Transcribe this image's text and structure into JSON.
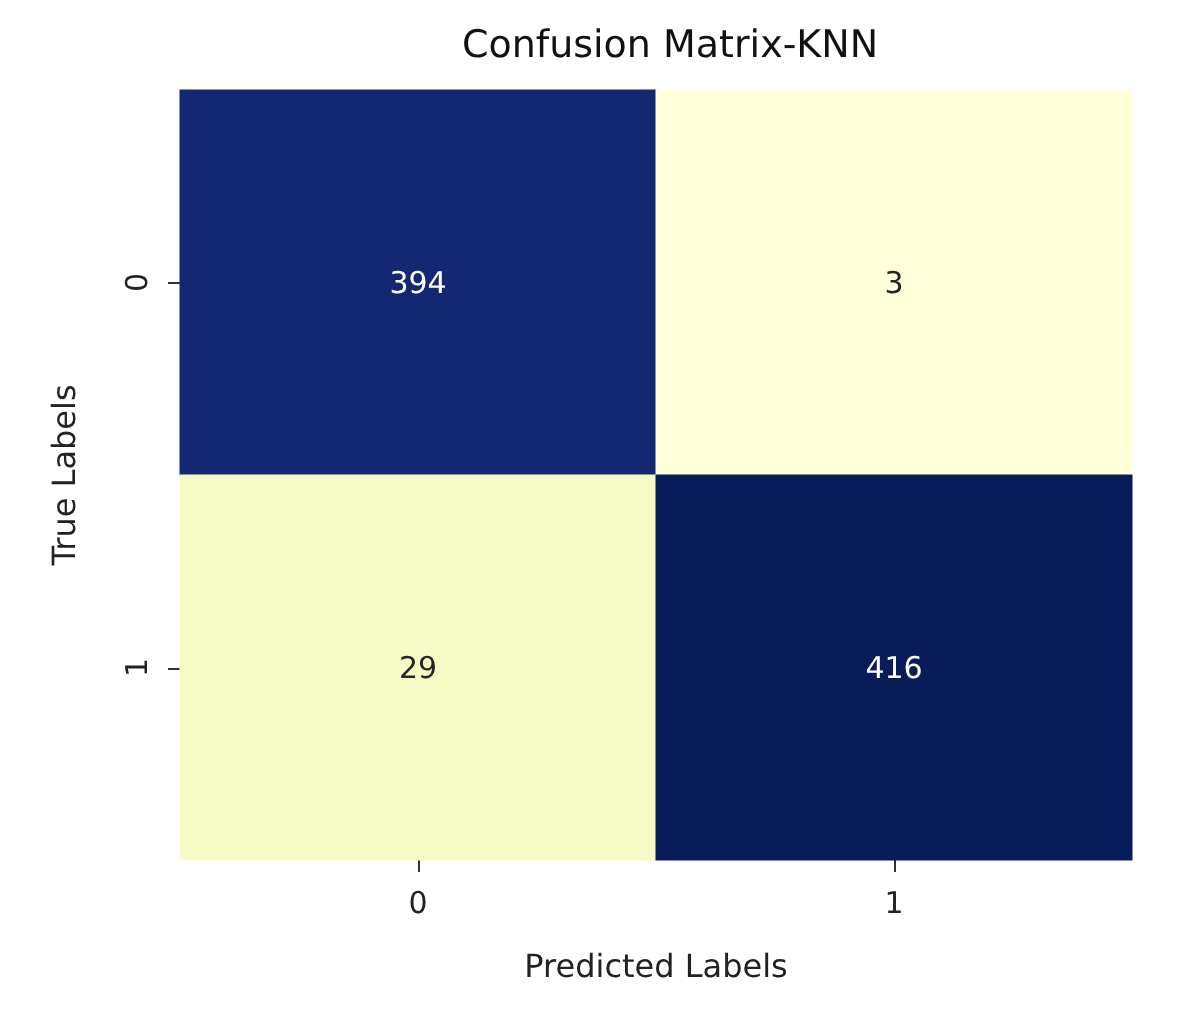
{
  "chart_data": {
    "type": "heatmap",
    "title": "Confusion Matrix-KNN",
    "xlabel": "Predicted Labels",
    "ylabel": "True Labels",
    "categories": [
      "0",
      "1"
    ],
    "y_categories": [
      "0",
      "1"
    ],
    "cells": [
      [
        394,
        3
      ],
      [
        29,
        416
      ]
    ],
    "data_labels": true
  }
}
